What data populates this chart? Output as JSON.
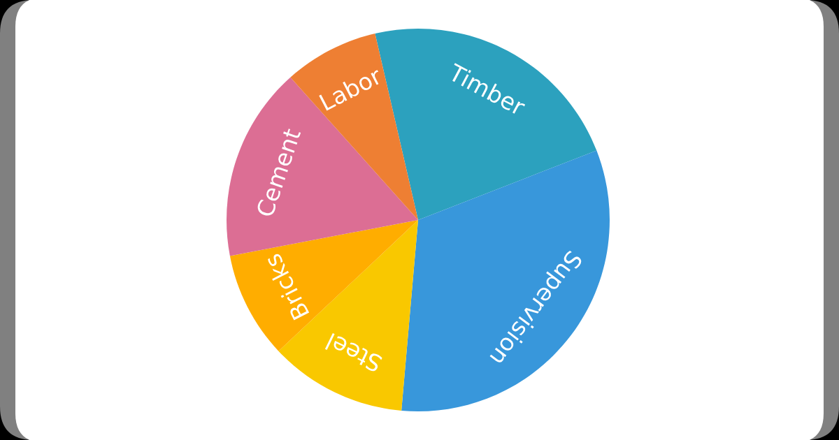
{
  "chart_data": {
    "type": "pie",
    "categories": [
      "Timber",
      "Supervision",
      "Steel",
      "Bricks",
      "Cement",
      "Labor"
    ],
    "values": [
      22.7,
      32.3,
      11.6,
      9.0,
      16.4,
      8.0
    ],
    "colors": [
      "#2ca1be",
      "#3897db",
      "#f9c800",
      "#ffad00",
      "#dc6e94",
      "#ee7f33"
    ]
  }
}
